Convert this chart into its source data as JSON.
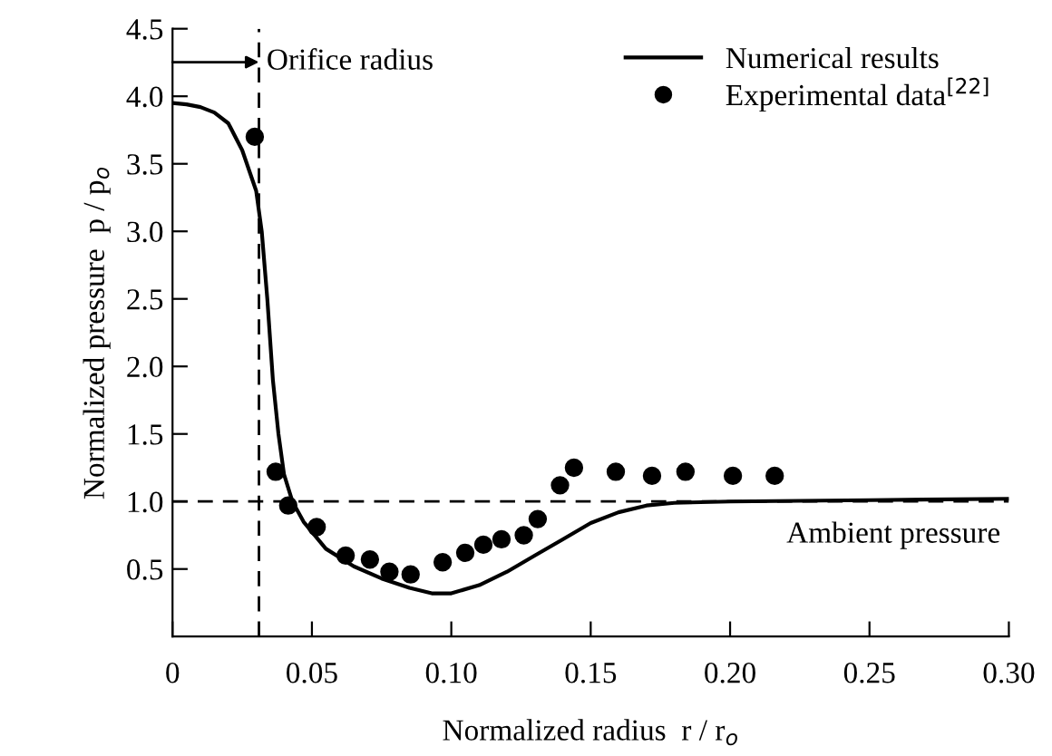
{
  "chart_data": {
    "type": "line",
    "xlabel": "Normalized radius  r / r$_{o}$",
    "ylabel": "Normalized pressure  p / p$_{o}$",
    "xlim": [
      0,
      0.3
    ],
    "ylim": [
      0,
      4.5
    ],
    "xticks": [
      0,
      0.05,
      {
        "value": 0.1,
        "label": "0.10"
      },
      0.15,
      {
        "value": 0.2,
        "label": "0.20"
      },
      0.25,
      {
        "value": 0.3,
        "label": "0.30"
      }
    ],
    "yticks": [
      0.5,
      {
        "value": 1,
        "label": "1.0"
      },
      1.5,
      {
        "value": 2,
        "label": "2.0"
      },
      2.5,
      {
        "value": 3,
        "label": "3.0"
      },
      3.5,
      {
        "value": 4,
        "label": "4.0"
      },
      4.5
    ],
    "grid": false,
    "legend": "top right",
    "series": [
      {
        "name": "Numerical results",
        "color": "#000000",
        "marker": "none",
        "line_style": "solid",
        "x": [
          0,
          0.005,
          0.01,
          0.015,
          0.02,
          0.025,
          0.03,
          0.032,
          0.034,
          0.036,
          0.038,
          0.04,
          0.043,
          0.047,
          0.055,
          0.065,
          0.075,
          0.085,
          0.093,
          0.1,
          0.11,
          0.12,
          0.13,
          0.14,
          0.15,
          0.16,
          0.17,
          0.18,
          0.2,
          0.25,
          0.3
        ],
        "values": [
          3.95,
          3.94,
          3.92,
          3.88,
          3.8,
          3.6,
          3.3,
          3.0,
          2.5,
          1.9,
          1.5,
          1.2,
          1.0,
          0.85,
          0.65,
          0.52,
          0.43,
          0.36,
          0.32,
          0.32,
          0.38,
          0.48,
          0.6,
          0.72,
          0.84,
          0.92,
          0.97,
          0.99,
          1.0,
          1.01,
          1.02
        ]
      },
      {
        "name": "Experimental data$^{[22]}$",
        "type": "scatter",
        "color": "#000000",
        "marker": "circle",
        "x": [
          0.0295,
          0.037,
          0.0415,
          0.0517,
          0.0621,
          0.0708,
          0.0778,
          0.0854,
          0.0969,
          0.105,
          0.1115,
          0.118,
          0.126,
          0.131,
          0.139,
          0.144,
          0.159,
          0.172,
          0.184,
          0.201,
          0.216
        ],
        "values": [
          3.7,
          1.22,
          0.97,
          0.81,
          0.6,
          0.57,
          0.48,
          0.46,
          0.55,
          0.62,
          0.68,
          0.72,
          0.75,
          0.87,
          1.12,
          1.25,
          1.22,
          1.19,
          1.22,
          1.19,
          1.19
        ]
      }
    ],
    "ref_lines": [
      {
        "axis": "x",
        "value": 0.031,
        "label": "Orifice radius",
        "color": "#000000",
        "line_style": "dashed"
      },
      {
        "axis": "y",
        "value": 1.0,
        "label": "Ambient pressure",
        "color": "#000000",
        "line_style": "dashed"
      }
    ]
  }
}
